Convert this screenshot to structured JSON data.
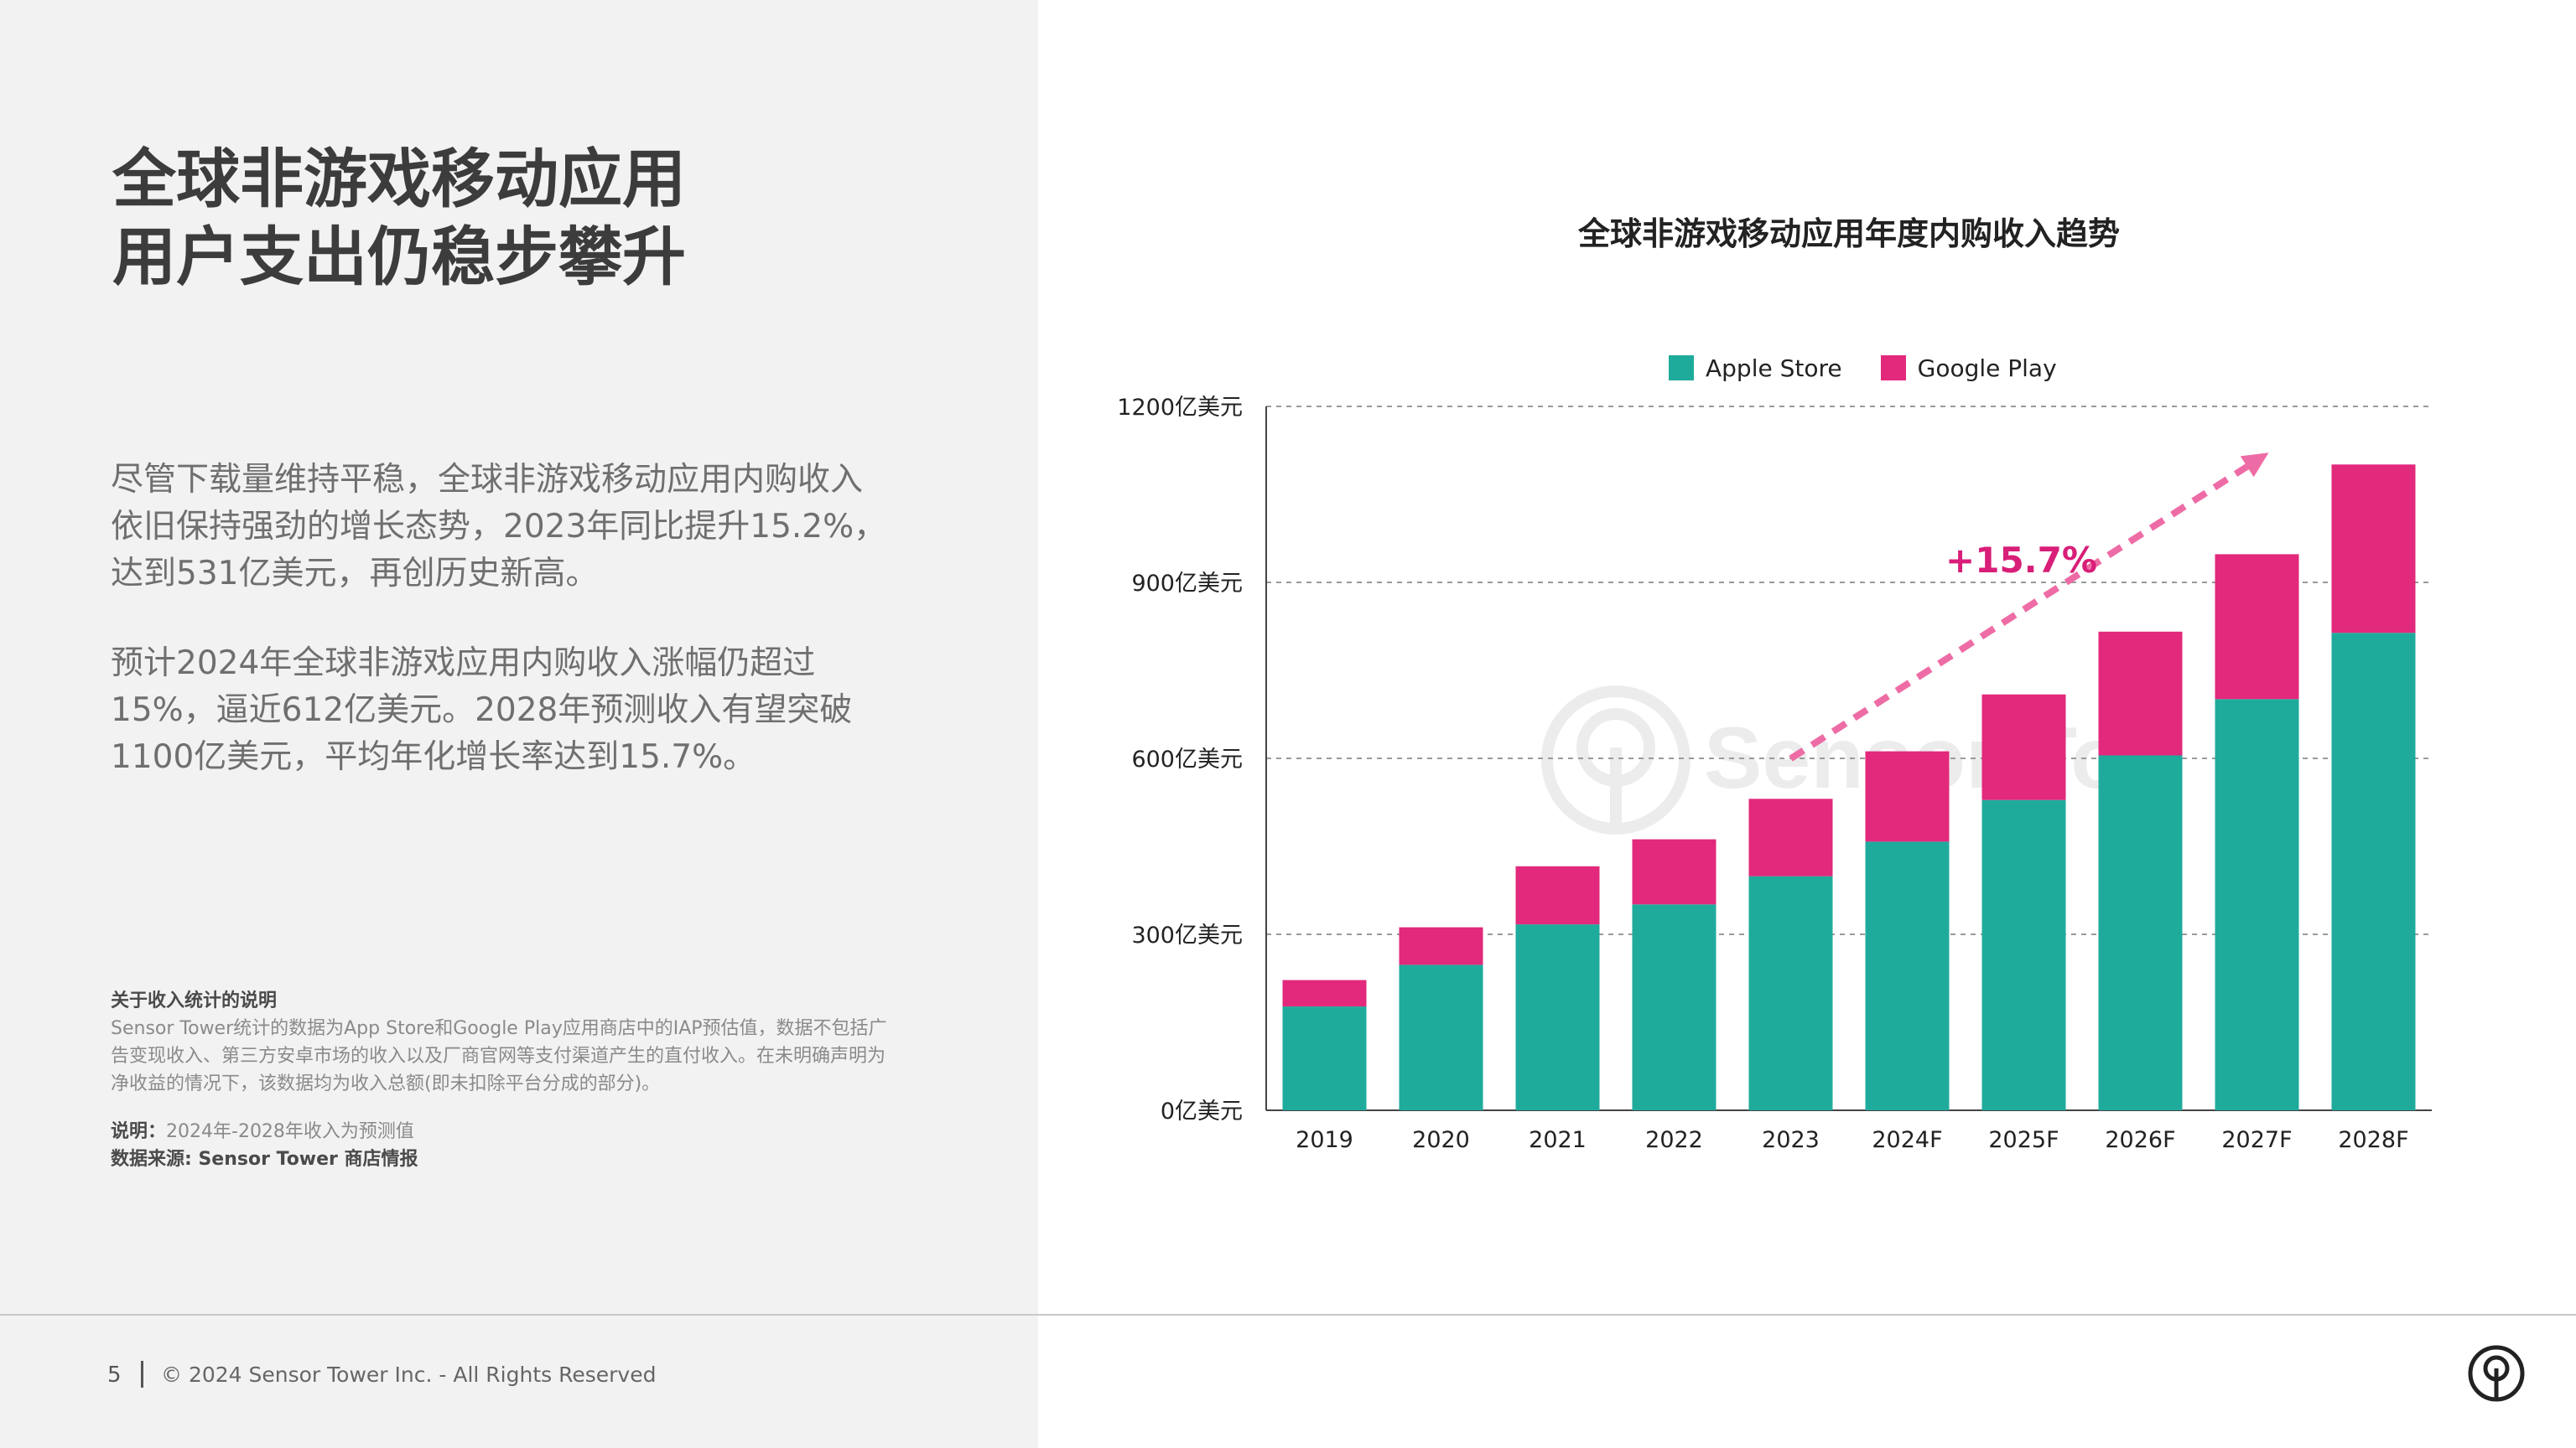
{
  "headline": {
    "line1": "全球非游戏移动应用",
    "line2": "用户支出仍稳步攀升"
  },
  "body": {
    "p1": "尽管下载量维持平稳，全球非游戏移动应用内购收入依旧保持强劲的增长态势，2023年同比提升15.2%，达到531亿美元，再创历史新高。",
    "p2": "预计2024年全球非游戏应用内购收入涨幅仍超过15%，逼近612亿美元。2028年预测收入有望突破1100亿美元，平均年化增长率达到15.7%。"
  },
  "notes": {
    "title": "关于收入统计的说明",
    "body": "Sensor Tower统计的数据为App Store和Google Play应用商店中的IAP预估值，数据不包括广告变现收入、第三方安卓市场的收入以及厂商官网等支付渠道产生的直付收入。在未明确声明为净收益的情况下，该数据均为收入总额(即未扣除平台分成的部分)。",
    "explain_label": "说明：",
    "explain_value": "2024年-2028年收入为预测值",
    "source": "数据来源: Sensor Tower 商店情报"
  },
  "footer": {
    "page": "5",
    "copyright": "© 2024 Sensor Tower Inc. - All Rights Reserved"
  },
  "colors": {
    "apple": "#1fab9c",
    "google": "#e2297c",
    "arrow": "#ee6ca5",
    "growth_text": "#d81e78"
  },
  "chart_data": {
    "type": "bar",
    "stacked": true,
    "title": "全球非游戏移动应用年度内购收入趋势",
    "categories": [
      "2019",
      "2020",
      "2021",
      "2022",
      "2023",
      "2024F",
      "2025F",
      "2026F",
      "2027F",
      "2028F"
    ],
    "series": [
      {
        "name": "Apple Store",
        "color": "#1fab9c",
        "values": [
          177,
          248,
          317,
          351,
          399,
          458,
          529,
          605,
          701,
          814
        ]
      },
      {
        "name": "Google Play",
        "color": "#e2297c",
        "values": [
          45,
          64,
          99,
          111,
          132,
          154,
          180,
          211,
          247,
          287
        ]
      }
    ],
    "yticks": [
      "0亿美元",
      "300亿美元",
      "600亿美元",
      "900亿美元",
      "1200亿美元"
    ],
    "ytick_values": [
      0,
      300,
      600,
      900,
      1200
    ],
    "ylim": [
      0,
      1200
    ],
    "grid": true,
    "legend_position": "top",
    "annotation": {
      "text": "+15.7%",
      "from_category": "2023",
      "to_category": "2028F"
    }
  }
}
